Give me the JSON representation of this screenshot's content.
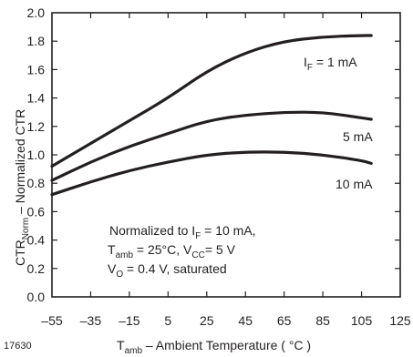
{
  "chart_data": {
    "type": "line",
    "figure_id": "17630",
    "xlabel": {
      "main": "T",
      "sub": "amb",
      "rest": " – Ambient Temperature ( °C )"
    },
    "ylabel": {
      "main1": "CTR",
      "sub1": "Norm",
      "rest": " – Normalized CTR"
    },
    "xlim": [
      -55,
      125
    ],
    "ylim": [
      0,
      2.0
    ],
    "x_ticks": [
      "–55",
      "–35",
      "–15",
      "5",
      "25",
      "45",
      "65",
      "85",
      "105",
      "125"
    ],
    "y_ticks": [
      "0.0",
      "0.2",
      "0.4",
      "0.6",
      "0.8",
      "1.0",
      "1.2",
      "1.4",
      "1.6",
      "1.8",
      "2.0"
    ],
    "grid": false,
    "series": [
      {
        "name": {
          "main": "I",
          "sub": "F",
          "rest": " =  1 mA"
        },
        "x": [
          -55,
          -35,
          -15,
          5,
          25,
          45,
          65,
          85,
          105,
          110
        ],
        "y": [
          0.92,
          1.08,
          1.24,
          1.4,
          1.59,
          1.72,
          1.8,
          1.83,
          1.84,
          1.84
        ]
      },
      {
        "name": {
          "main": "5 mA",
          "sub": "",
          "rest": ""
        },
        "x": [
          -55,
          -35,
          -15,
          5,
          25,
          45,
          65,
          85,
          105,
          110
        ],
        "y": [
          0.82,
          0.95,
          1.06,
          1.15,
          1.24,
          1.28,
          1.3,
          1.3,
          1.26,
          1.25
        ]
      },
      {
        "name": {
          "main": "10 mA",
          "sub": "",
          "rest": ""
        },
        "x": [
          -55,
          -35,
          -15,
          5,
          25,
          45,
          65,
          85,
          105,
          110
        ],
        "y": [
          0.72,
          0.81,
          0.89,
          0.95,
          1.0,
          1.02,
          1.02,
          1.0,
          0.96,
          0.94
        ]
      }
    ],
    "annotation": [
      {
        "main": "Normalized to I",
        "sub": "F",
        "rest": " = 10 mA,"
      },
      {
        "main": "T",
        "sub": "amb",
        "rest": " = 25°C, V",
        "sub2": "CC",
        "rest2": "= 5 V"
      },
      {
        "main": "V",
        "sub": "O",
        "rest": " = 0.4 V, saturated"
      }
    ],
    "line_color": "#231f20"
  }
}
